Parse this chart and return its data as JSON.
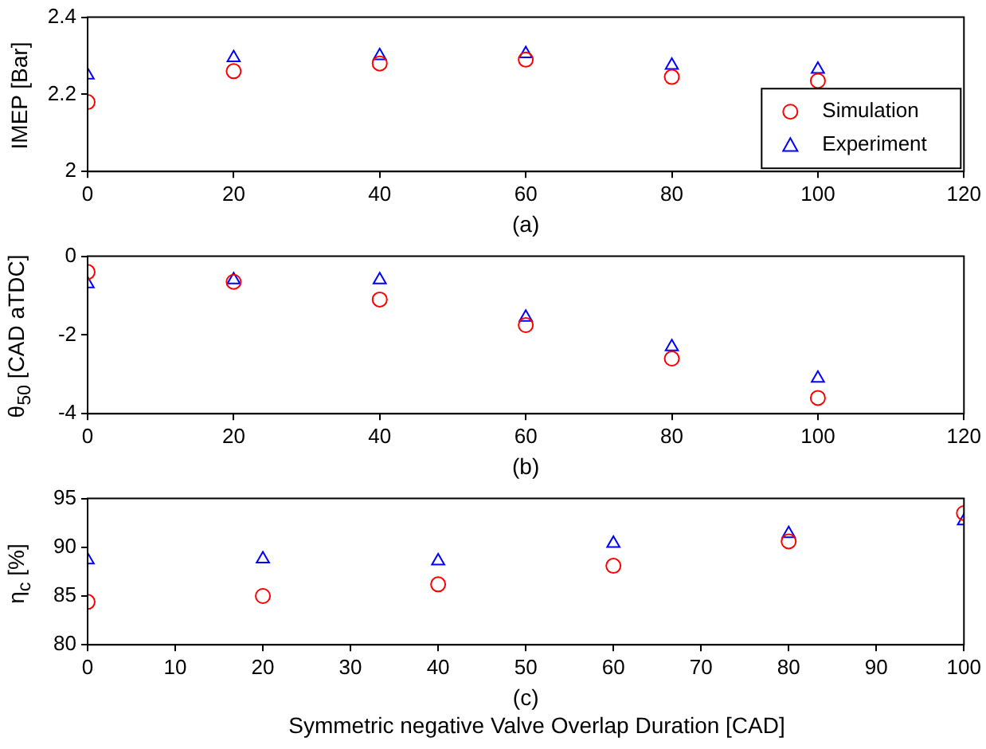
{
  "chart_data": [
    {
      "type": "scatter",
      "xlabel": "(a)",
      "ylabel": "IMEP [Bar]",
      "x": [
        0,
        20,
        40,
        60,
        80,
        100
      ],
      "xlim": [
        0,
        120
      ],
      "xticks": [
        0,
        20,
        40,
        60,
        80,
        100,
        120
      ],
      "ylim": [
        2,
        2.4
      ],
      "yticks": [
        2,
        2.2,
        2.4
      ],
      "legend": "bottom right",
      "grid": false,
      "series": [
        {
          "name": "Simulation",
          "color": "#ff0000",
          "marker": "circle",
          "values": [
            2.18,
            2.26,
            2.28,
            2.29,
            2.245,
            2.235
          ]
        },
        {
          "name": "Experiment",
          "color": "#0000ff",
          "marker": "triangle",
          "values": [
            2.25,
            2.295,
            2.3,
            2.305,
            2.275,
            2.265
          ]
        }
      ]
    },
    {
      "type": "scatter",
      "xlabel": "(b)",
      "ylabel": "θ$_{50}$ [CAD aTDC]",
      "x": [
        0,
        20,
        40,
        60,
        80,
        100
      ],
      "xlim": [
        0,
        120
      ],
      "xticks": [
        0,
        20,
        40,
        60,
        80,
        100,
        120
      ],
      "ylim": [
        -4,
        0
      ],
      "yticks": [
        -4,
        -2,
        0
      ],
      "grid": false,
      "series": [
        {
          "color": "#ff0000",
          "marker": "circle",
          "values": [
            -0.4,
            -0.65,
            -1.1,
            -1.75,
            -2.6,
            -3.6
          ]
        },
        {
          "color": "#0000ff",
          "marker": "triangle",
          "values": [
            -0.7,
            -0.6,
            -0.6,
            -1.55,
            -2.3,
            -3.1
          ]
        }
      ]
    },
    {
      "type": "scatter",
      "xlabel": "(c)",
      "ylabel": "η$_{c}$ [%]",
      "annotations": [
        "Symmetric negative Valve Overlap Duration [CAD]"
      ],
      "x": [
        0,
        20,
        40,
        60,
        80,
        100
      ],
      "xlim": [
        0,
        100
      ],
      "xticks": [
        0,
        10,
        20,
        30,
        40,
        50,
        60,
        70,
        80,
        90,
        100
      ],
      "ylim": [
        80,
        95
      ],
      "yticks": [
        80,
        85,
        90,
        95
      ],
      "grid": false,
      "series": [
        {
          "color": "#ff0000",
          "marker": "circle",
          "values": [
            84.4,
            85.0,
            86.2,
            88.1,
            90.6,
            93.5
          ]
        },
        {
          "color": "#0000ff",
          "marker": "triangle",
          "values": [
            88.7,
            88.8,
            88.6,
            90.4,
            91.4,
            92.7
          ]
        }
      ]
    }
  ]
}
